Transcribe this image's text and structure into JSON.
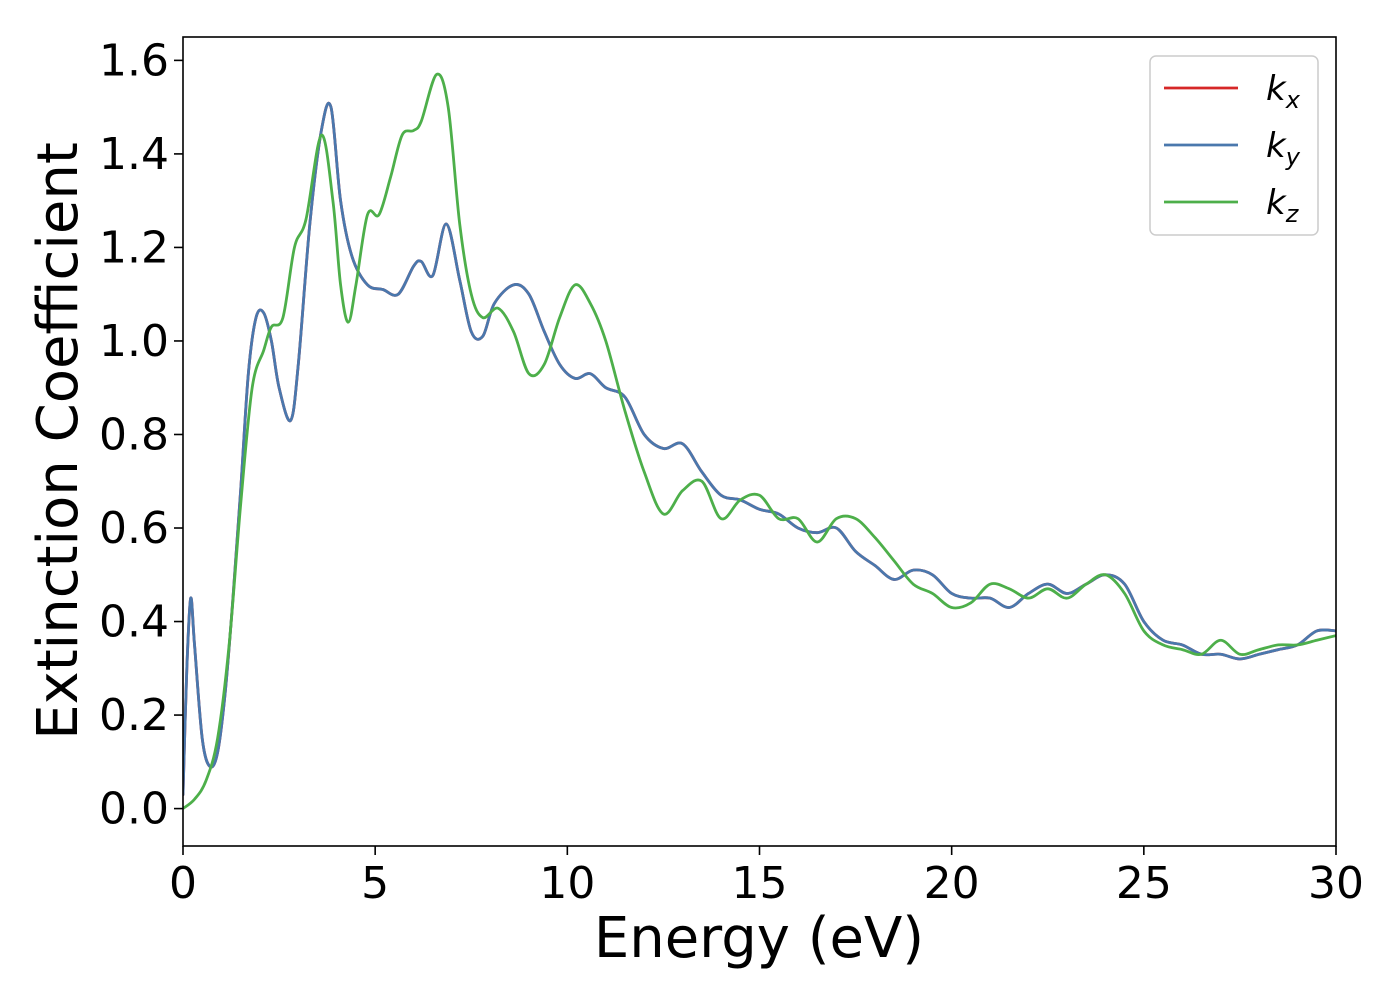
{
  "chart_data": {
    "type": "line",
    "xlabel": "Energy (eV)",
    "ylabel": "Extinction Coefficient",
    "xlim": [
      0,
      30
    ],
    "ylim": [
      -0.08,
      1.65
    ],
    "xticks": [
      "0",
      "5",
      "10",
      "15",
      "20",
      "25",
      "30"
    ],
    "yticks": [
      "0.0",
      "0.2",
      "0.4",
      "0.6",
      "0.8",
      "1.0",
      "1.2",
      "1.4",
      "1.6"
    ],
    "grid": false,
    "legend_position": "top-right",
    "series": [
      {
        "name": "k",
        "subscript": "x",
        "color": "#d62728",
        "x": [
          0,
          0.1,
          0.2,
          0.3,
          0.5,
          0.7,
          0.9,
          1.1,
          1.3,
          1.5,
          1.7,
          1.9,
          2.1,
          2.3,
          2.5,
          2.8,
          3.0,
          3.3,
          3.6,
          3.85,
          4.1,
          4.4,
          4.8,
          5.2,
          5.6,
          6.0,
          6.2,
          6.5,
          6.85,
          7.2,
          7.5,
          7.8,
          8.1,
          8.6,
          9.0,
          9.4,
          9.8,
          10.2,
          10.6,
          11.0,
          11.5,
          12.0,
          12.5,
          13.0,
          13.5,
          14.0,
          14.5,
          15.0,
          15.5,
          16.0,
          16.5,
          17.0,
          17.5,
          18.0,
          18.5,
          19.0,
          19.5,
          20.0,
          20.5,
          21.0,
          21.5,
          22.0,
          22.5,
          23.0,
          23.5,
          24.0,
          24.5,
          25.0,
          25.5,
          26.0,
          26.5,
          27.0,
          27.5,
          28.0,
          28.5,
          29.0,
          29.5,
          30.0
        ],
        "y": [
          0.03,
          0.3,
          0.45,
          0.35,
          0.15,
          0.09,
          0.12,
          0.25,
          0.45,
          0.68,
          0.93,
          1.05,
          1.06,
          1.0,
          0.9,
          0.83,
          0.95,
          1.25,
          1.45,
          1.5,
          1.3,
          1.18,
          1.12,
          1.11,
          1.1,
          1.16,
          1.17,
          1.14,
          1.25,
          1.13,
          1.02,
          1.01,
          1.08,
          1.12,
          1.1,
          1.02,
          0.95,
          0.92,
          0.93,
          0.9,
          0.88,
          0.8,
          0.77,
          0.78,
          0.72,
          0.67,
          0.66,
          0.64,
          0.63,
          0.6,
          0.59,
          0.6,
          0.55,
          0.52,
          0.49,
          0.51,
          0.5,
          0.46,
          0.45,
          0.45,
          0.43,
          0.46,
          0.48,
          0.46,
          0.48,
          0.5,
          0.48,
          0.4,
          0.36,
          0.35,
          0.33,
          0.33,
          0.32,
          0.33,
          0.34,
          0.35,
          0.38,
          0.38
        ]
      },
      {
        "name": "k",
        "subscript": "y",
        "color": "#4a78ad",
        "x": [
          0,
          0.1,
          0.2,
          0.3,
          0.5,
          0.7,
          0.9,
          1.1,
          1.3,
          1.5,
          1.7,
          1.9,
          2.1,
          2.3,
          2.5,
          2.8,
          3.0,
          3.3,
          3.6,
          3.85,
          4.1,
          4.4,
          4.8,
          5.2,
          5.6,
          6.0,
          6.2,
          6.5,
          6.85,
          7.2,
          7.5,
          7.8,
          8.1,
          8.6,
          9.0,
          9.4,
          9.8,
          10.2,
          10.6,
          11.0,
          11.5,
          12.0,
          12.5,
          13.0,
          13.5,
          14.0,
          14.5,
          15.0,
          15.5,
          16.0,
          16.5,
          17.0,
          17.5,
          18.0,
          18.5,
          19.0,
          19.5,
          20.0,
          20.5,
          21.0,
          21.5,
          22.0,
          22.5,
          23.0,
          23.5,
          24.0,
          24.5,
          25.0,
          25.5,
          26.0,
          26.5,
          27.0,
          27.5,
          28.0,
          28.5,
          29.0,
          29.5,
          30.0
        ],
        "y": [
          0.03,
          0.3,
          0.45,
          0.35,
          0.15,
          0.09,
          0.12,
          0.25,
          0.45,
          0.68,
          0.93,
          1.05,
          1.06,
          1.0,
          0.9,
          0.83,
          0.95,
          1.25,
          1.45,
          1.5,
          1.3,
          1.18,
          1.12,
          1.11,
          1.1,
          1.16,
          1.17,
          1.14,
          1.25,
          1.13,
          1.02,
          1.01,
          1.08,
          1.12,
          1.1,
          1.02,
          0.95,
          0.92,
          0.93,
          0.9,
          0.88,
          0.8,
          0.77,
          0.78,
          0.72,
          0.67,
          0.66,
          0.64,
          0.63,
          0.6,
          0.59,
          0.6,
          0.55,
          0.52,
          0.49,
          0.51,
          0.5,
          0.46,
          0.45,
          0.45,
          0.43,
          0.46,
          0.48,
          0.46,
          0.48,
          0.5,
          0.48,
          0.4,
          0.36,
          0.35,
          0.33,
          0.33,
          0.32,
          0.33,
          0.34,
          0.35,
          0.38,
          0.38
        ]
      },
      {
        "name": "k",
        "subscript": "z",
        "color": "#4daf4a",
        "x": [
          0,
          0.3,
          0.6,
          0.9,
          1.2,
          1.5,
          1.8,
          2.1,
          2.3,
          2.6,
          2.9,
          3.2,
          3.6,
          3.9,
          4.1,
          4.3,
          4.5,
          4.8,
          5.1,
          5.4,
          5.7,
          6.0,
          6.2,
          6.6,
          6.9,
          7.2,
          7.5,
          7.8,
          8.2,
          8.6,
          9.0,
          9.4,
          9.8,
          10.2,
          10.6,
          11.0,
          11.5,
          12.0,
          12.5,
          13.0,
          13.5,
          14.0,
          14.5,
          15.0,
          15.5,
          16.0,
          16.5,
          17.0,
          17.5,
          18.0,
          18.5,
          19.0,
          19.5,
          20.0,
          20.5,
          21.0,
          21.5,
          22.0,
          22.5,
          23.0,
          23.5,
          24.0,
          24.5,
          25.0,
          25.5,
          26.0,
          26.5,
          27.0,
          27.5,
          28.0,
          28.5,
          29.0,
          29.5,
          30.0
        ],
        "y": [
          0.0,
          0.02,
          0.06,
          0.15,
          0.35,
          0.65,
          0.9,
          0.98,
          1.03,
          1.05,
          1.2,
          1.26,
          1.44,
          1.3,
          1.12,
          1.04,
          1.12,
          1.27,
          1.27,
          1.35,
          1.44,
          1.45,
          1.47,
          1.57,
          1.5,
          1.25,
          1.1,
          1.05,
          1.07,
          1.02,
          0.93,
          0.95,
          1.05,
          1.12,
          1.08,
          1.0,
          0.85,
          0.72,
          0.63,
          0.68,
          0.7,
          0.62,
          0.66,
          0.67,
          0.62,
          0.62,
          0.57,
          0.62,
          0.62,
          0.58,
          0.53,
          0.48,
          0.46,
          0.43,
          0.44,
          0.48,
          0.47,
          0.45,
          0.47,
          0.45,
          0.48,
          0.5,
          0.46,
          0.38,
          0.35,
          0.34,
          0.33,
          0.36,
          0.33,
          0.34,
          0.35,
          0.35,
          0.36,
          0.37
        ]
      }
    ]
  }
}
